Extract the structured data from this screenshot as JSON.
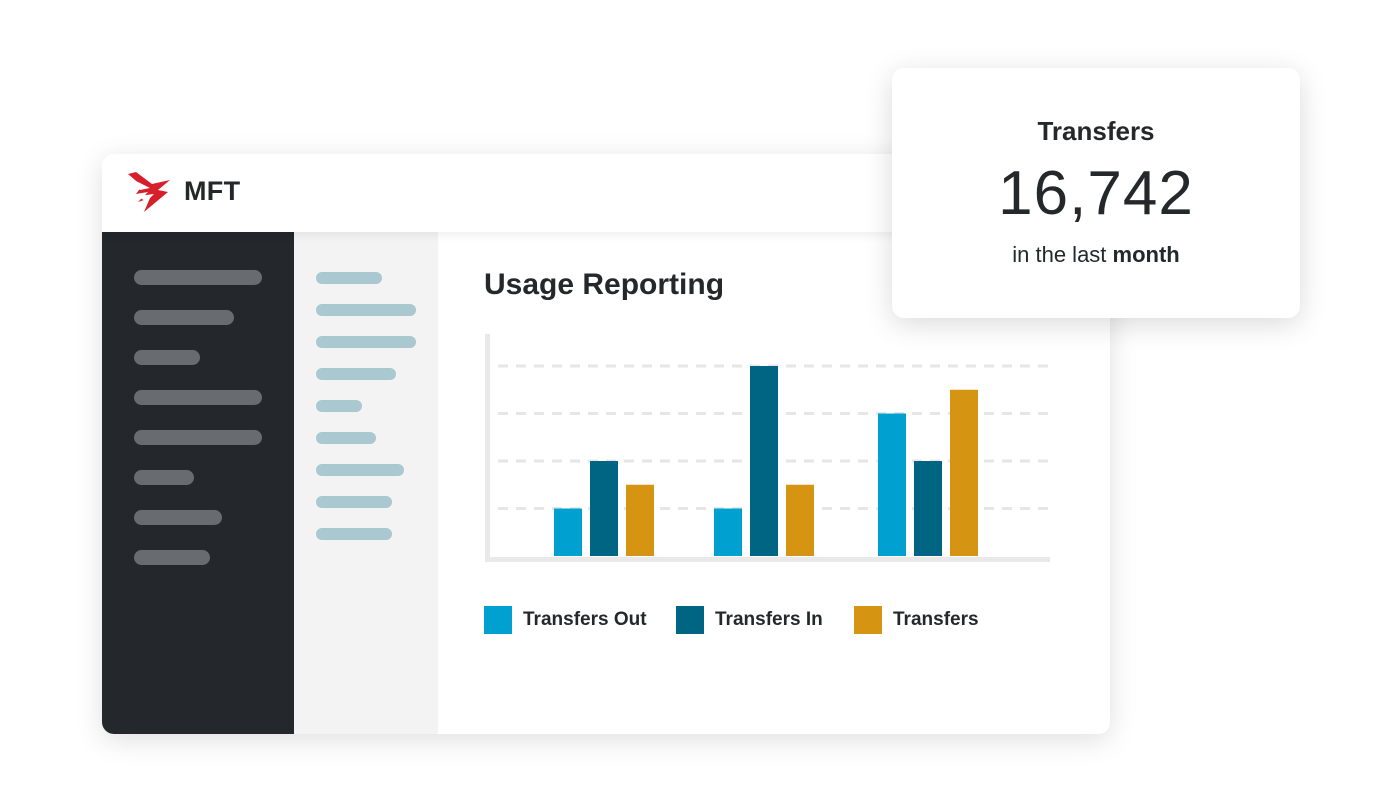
{
  "app": {
    "name": "MFT"
  },
  "page": {
    "title": "Usage Reporting"
  },
  "stat_card": {
    "title": "Transfers",
    "value": "16,742",
    "caption_prefix": "in the last ",
    "caption_emphasis": "month"
  },
  "colors": {
    "transfers_out": "#00a1d0",
    "transfers_in": "#006483",
    "transfers": "#d59512",
    "brand_red": "#d71f2b"
  },
  "chart_data": {
    "type": "bar",
    "categories": [
      "",
      "",
      ""
    ],
    "series": [
      {
        "name": "Transfers Out",
        "values": [
          1,
          1,
          3
        ]
      },
      {
        "name": "Transfers In",
        "values": [
          2,
          4,
          2
        ]
      },
      {
        "name": "Transfers",
        "values": [
          1.5,
          1.5,
          3.5
        ]
      }
    ],
    "ylim": [
      0,
      4.2
    ],
    "grid": true,
    "legend": "bottom"
  }
}
